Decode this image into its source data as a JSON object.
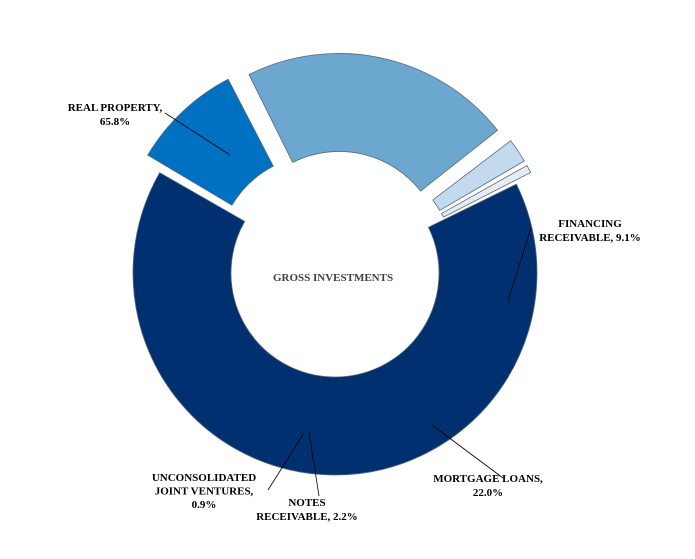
{
  "chart_data": {
    "type": "pie",
    "variant": "exploded donut",
    "center_label": "GROSS INVESTMENTS",
    "slices": [
      {
        "name": "REAL PROPERTY",
        "value": 65.8,
        "label_lines": [
          "REAL PROPERTY,",
          "65.8%"
        ],
        "color": "#003070"
      },
      {
        "name": "FINANCING RECEIVABLE",
        "value": 9.1,
        "label_lines": [
          "FINANCING",
          "RECEIVABLE, 9.1%"
        ],
        "color": "#0070C0"
      },
      {
        "name": "MORTGAGE LOANS",
        "value": 22.0,
        "label_lines": [
          "MORTGAGE LOANS,",
          "22.0%"
        ],
        "color": "#6BA7CF"
      },
      {
        "name": "NOTES RECEIVABLE",
        "value": 2.2,
        "label_lines": [
          "NOTES",
          "RECEIVABLE, 2.2%"
        ],
        "color": "#C3D9EE"
      },
      {
        "name": "UNCONSOLIDATED JOINT VENTURES",
        "value": 0.9,
        "label_lines": [
          "UNCONSOLIDATED",
          "JOINT VENTURES,",
          "0.9%"
        ],
        "color": "#E6ECF5"
      }
    ],
    "legend": "none"
  }
}
